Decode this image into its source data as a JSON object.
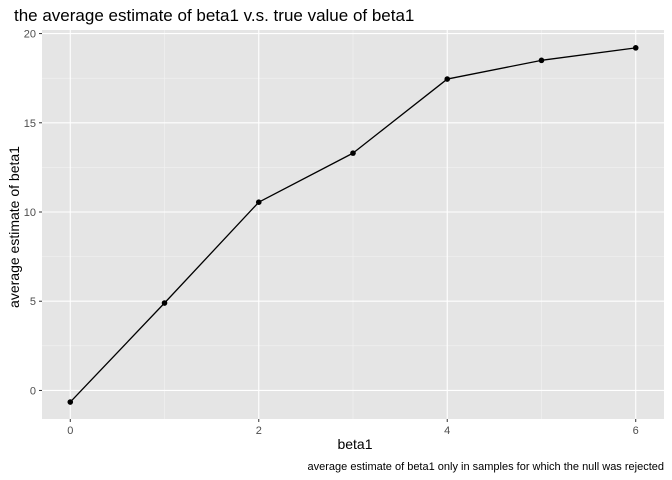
{
  "chart_data": {
    "type": "line",
    "title": "the average estimate of beta1 v.s. true value of beta1",
    "xlabel": "beta1",
    "ylabel": "average estimate of beta1",
    "caption": "average estimate of beta1 only in samples for which the null was rejected",
    "x": [
      0,
      1,
      2,
      3,
      4,
      5,
      6
    ],
    "series": [
      {
        "values": [
          -0.65,
          4.9,
          10.55,
          13.3,
          17.45,
          18.5,
          19.2
        ]
      }
    ],
    "xlim": [
      -0.3,
      6.3
    ],
    "ylim": [
      -1.6,
      20.2
    ],
    "x_ticks": [
      0,
      2,
      4,
      6
    ],
    "x_minor_ticks": [
      1,
      3,
      5
    ],
    "y_ticks": [
      0,
      5,
      10,
      15,
      20
    ],
    "y_minor_ticks": [
      2.5,
      7.5,
      12.5,
      17.5
    ],
    "x_tick_labels": [
      "0",
      "2",
      "4",
      "6"
    ],
    "y_tick_labels": [
      "0",
      "5",
      "10",
      "15",
      "20"
    ],
    "grid": true,
    "legend": "none",
    "colors": {
      "panel_background": "#e5e5e5",
      "grid_major": "#ffffff",
      "grid_minor": "#f2f2f2",
      "line": "#000000",
      "point": "#000000",
      "tick_label": "#4d4d4d"
    }
  }
}
